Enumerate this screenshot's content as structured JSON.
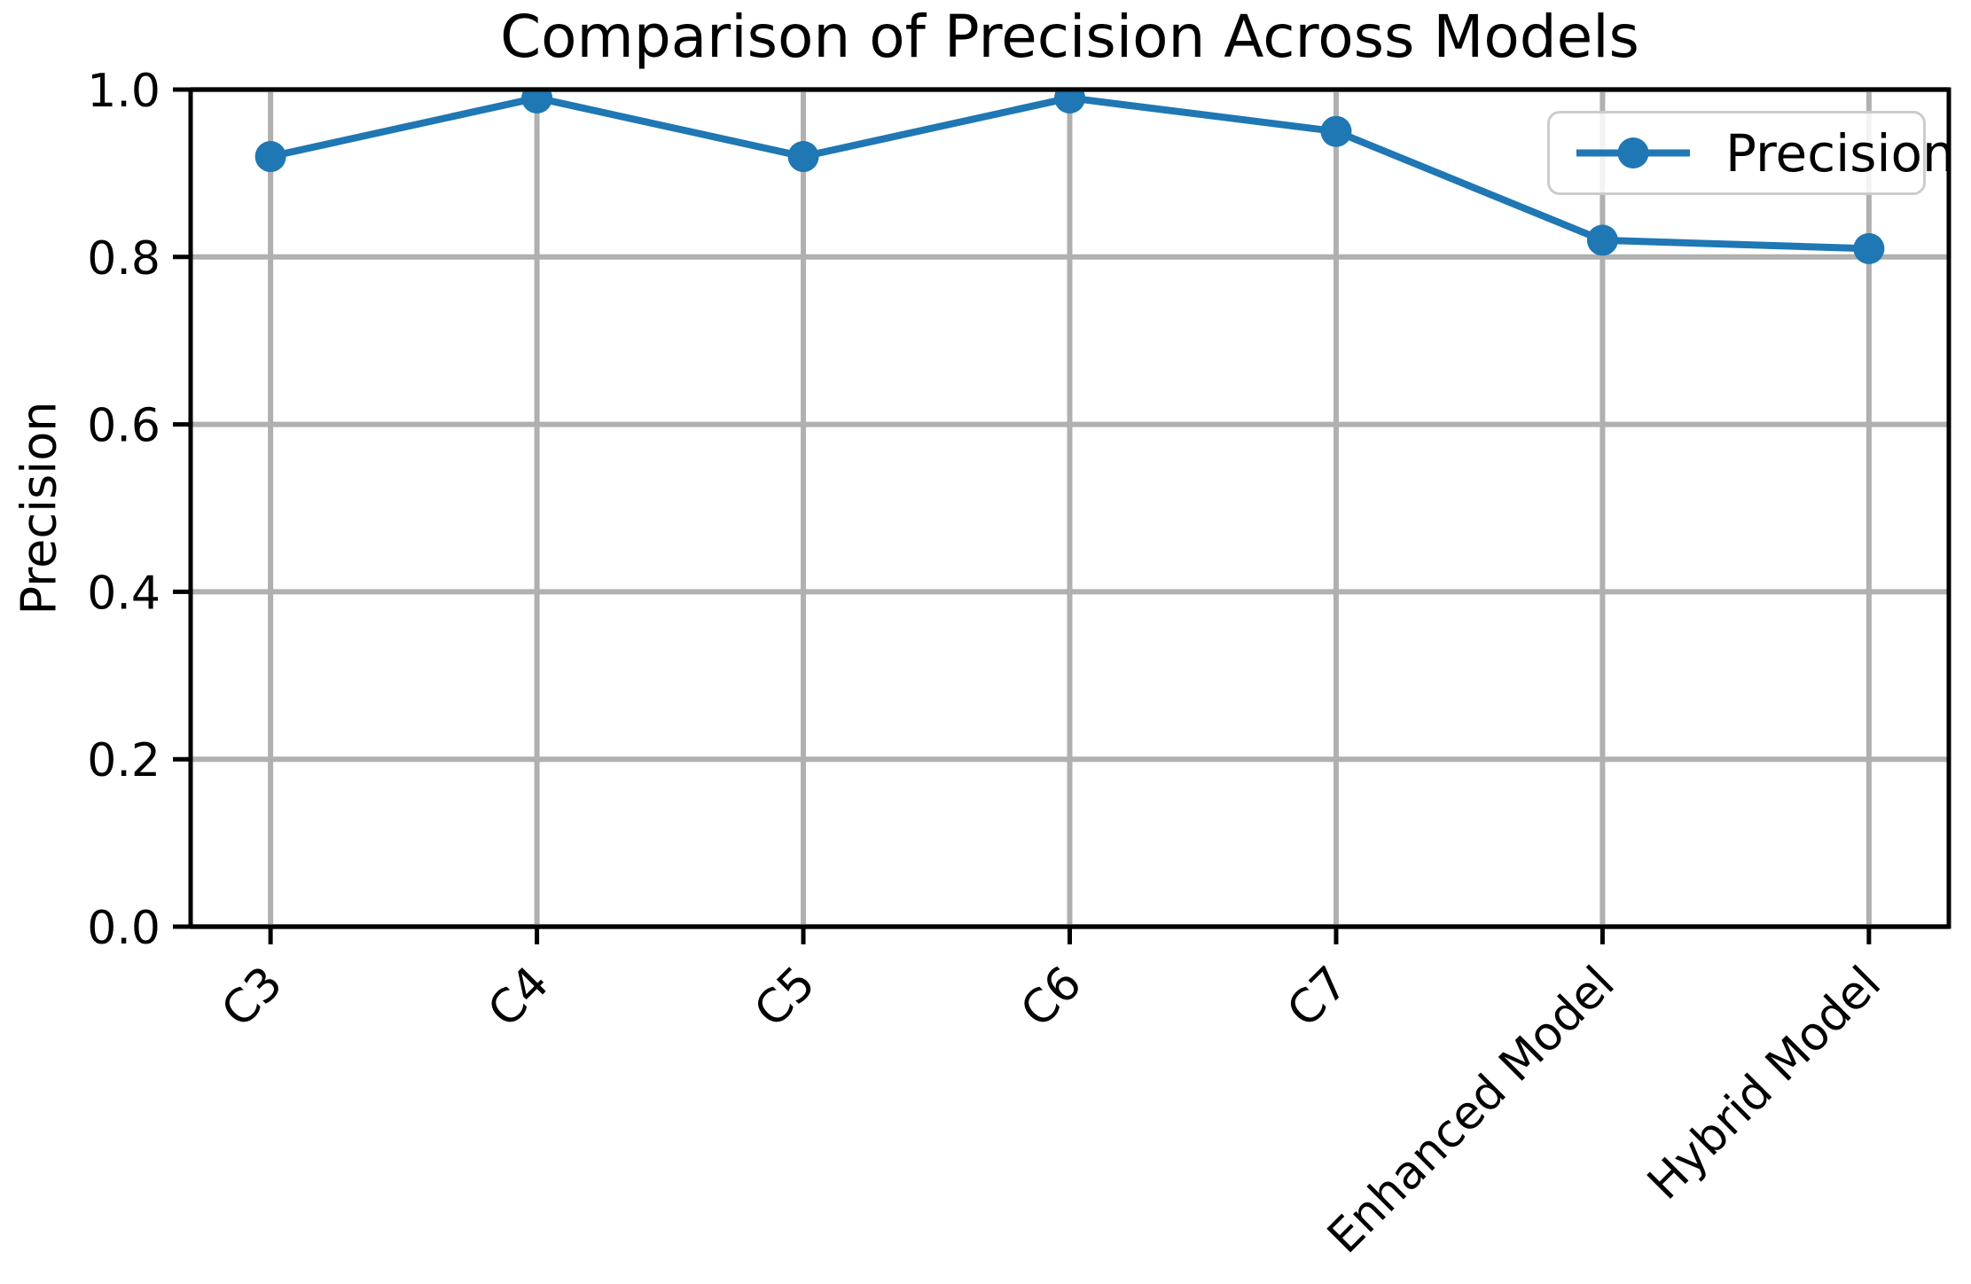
{
  "figure": {
    "title": "Comparison of Precision Across Models",
    "ylabel": "Precision",
    "legend": {
      "label": "Precision"
    }
  },
  "chart_data": {
    "type": "line",
    "title": "Comparison of Precision Across Models",
    "xlabel": "",
    "ylabel": "Precision",
    "categories": [
      "C3",
      "C4",
      "C5",
      "C6",
      "C7",
      "Enhanced Model",
      "Hybrid Model"
    ],
    "series": [
      {
        "name": "Precision",
        "values": [
          0.92,
          0.99,
          0.92,
          0.99,
          0.95,
          0.82,
          0.81
        ]
      }
    ],
    "ylim": [
      0.0,
      1.0
    ],
    "yticks": [
      0.0,
      0.2,
      0.4,
      0.6,
      0.8,
      1.0
    ],
    "ytick_labels": [
      "0.0",
      "0.2",
      "0.4",
      "0.6",
      "0.8",
      "1.0"
    ],
    "xtick_rotation_deg": 45,
    "grid": true,
    "legend_position": "upper right",
    "legend_entries": [
      "Precision"
    ],
    "line_color": "#1f77b4",
    "marker": "o",
    "grid_color": "#b0b0b0",
    "axis_color": "#000000",
    "background_color": "#ffffff",
    "legend_border_color": "#cccccc"
  }
}
